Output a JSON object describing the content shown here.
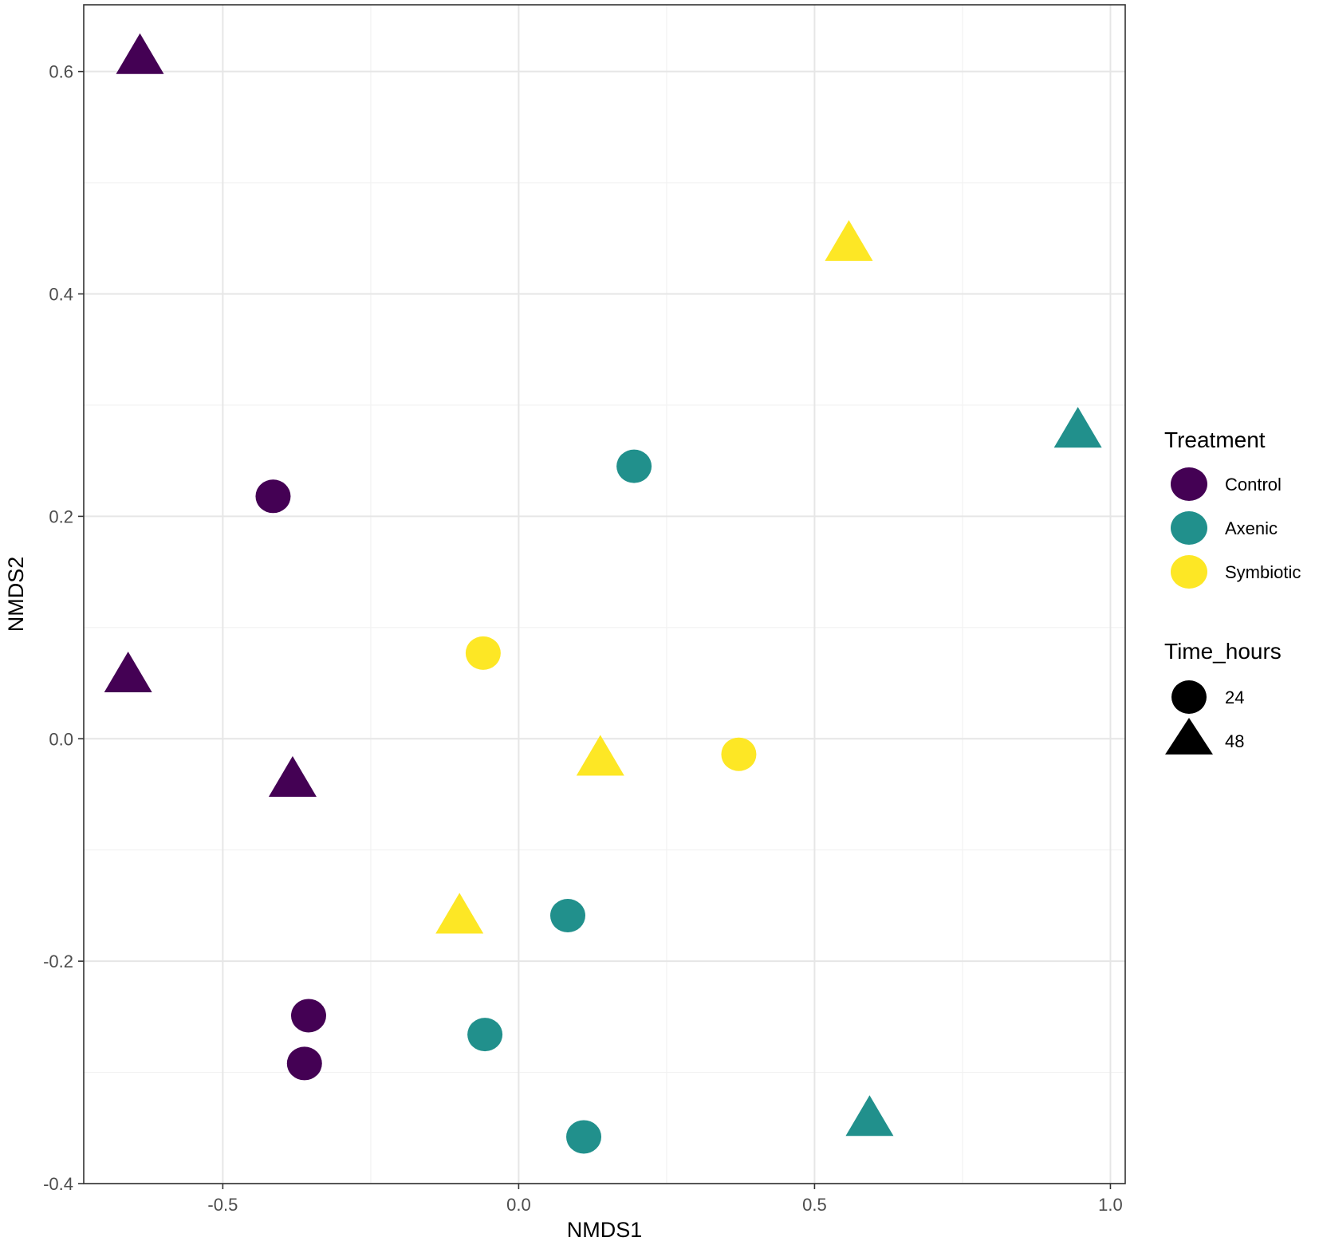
{
  "chart_data": {
    "type": "scatter",
    "title": "",
    "xlabel": "NMDS1",
    "ylabel": "NMDS2",
    "xlim": [
      -0.735,
      1.025
    ],
    "ylim": [
      -0.4,
      0.66
    ],
    "x_ticks": [
      -0.5,
      0.0,
      0.5,
      1.0
    ],
    "x_tick_labels": [
      "-0.5",
      "0.0",
      "0.5",
      "1.0"
    ],
    "y_ticks": [
      -0.4,
      -0.2,
      0.0,
      0.2,
      0.4,
      0.6
    ],
    "y_tick_labels": [
      "-0.4",
      "-0.2",
      "0.0",
      "0.2",
      "0.4",
      "0.6"
    ],
    "grid": true,
    "legend_position": "right",
    "legends": {
      "treatment": {
        "title": "Treatment",
        "entries": [
          {
            "label": "Control",
            "color": "#440154"
          },
          {
            "label": "Axenic",
            "color": "#21908C"
          },
          {
            "label": "Symbiotic",
            "color": "#FDE725"
          }
        ]
      },
      "time": {
        "title": "Time_hours",
        "entries": [
          {
            "label": "24",
            "shape": "circle"
          },
          {
            "label": "48",
            "shape": "triangle"
          }
        ]
      }
    },
    "series": [
      {
        "name": "Control",
        "color": "#440154",
        "points": [
          {
            "x": -0.64,
            "y": 0.61,
            "time": "48"
          },
          {
            "x": -0.415,
            "y": 0.218,
            "time": "24"
          },
          {
            "x": -0.66,
            "y": 0.054,
            "time": "48"
          },
          {
            "x": -0.382,
            "y": -0.04,
            "time": "48"
          },
          {
            "x": -0.355,
            "y": -0.249,
            "time": "24"
          },
          {
            "x": -0.362,
            "y": -0.292,
            "time": "24"
          }
        ]
      },
      {
        "name": "Axenic",
        "color": "#21908C",
        "points": [
          {
            "x": 0.195,
            "y": 0.245,
            "time": "24"
          },
          {
            "x": 0.945,
            "y": 0.274,
            "time": "48"
          },
          {
            "x": 0.083,
            "y": -0.159,
            "time": "24"
          },
          {
            "x": -0.057,
            "y": -0.266,
            "time": "24"
          },
          {
            "x": 0.11,
            "y": -0.358,
            "time": "24"
          },
          {
            "x": 0.593,
            "y": -0.345,
            "time": "48"
          }
        ]
      },
      {
        "name": "Symbiotic",
        "color": "#FDE725",
        "points": [
          {
            "x": 0.558,
            "y": 0.442,
            "time": "48"
          },
          {
            "x": -0.06,
            "y": 0.077,
            "time": "24"
          },
          {
            "x": 0.138,
            "y": -0.021,
            "time": "48"
          },
          {
            "x": 0.372,
            "y": -0.014,
            "time": "24"
          },
          {
            "x": -0.1,
            "y": -0.163,
            "time": "48"
          }
        ]
      }
    ]
  }
}
